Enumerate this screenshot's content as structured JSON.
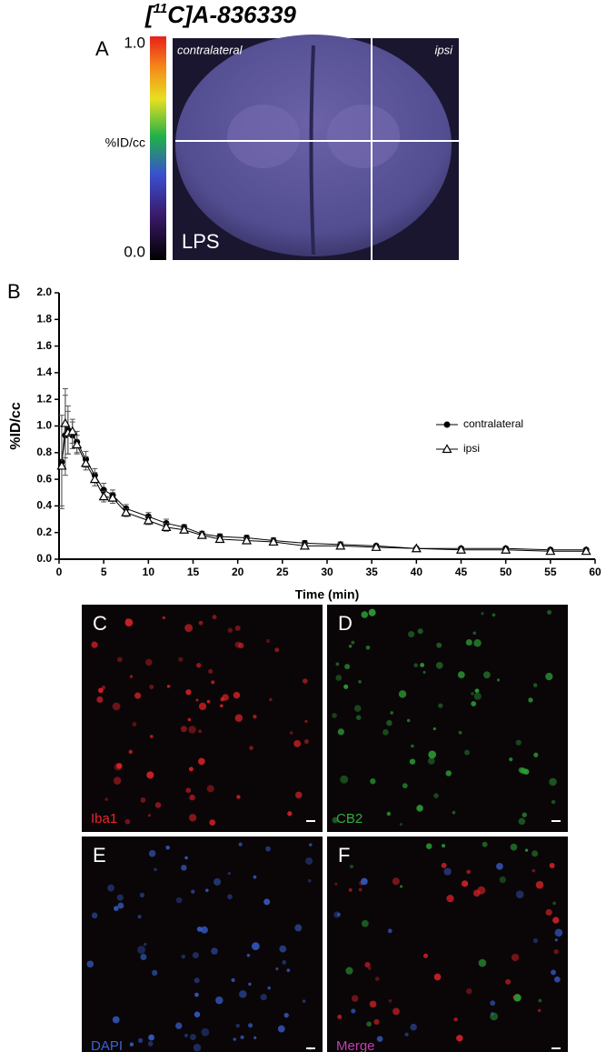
{
  "figure": {
    "title_prefix": "[",
    "title_sup": "11",
    "title_suffix": "C]A-836339",
    "panel_a": {
      "label": "A",
      "colorbar_max": "1.0",
      "colorbar_min": "0.0",
      "colorbar_title": "%ID/cc",
      "left_label": "contralateral",
      "right_label": "ipsi",
      "condition": "LPS"
    },
    "panel_b_label": "B",
    "micrographs": [
      {
        "label": "C",
        "stain": "Iba1",
        "color": "#e8242a"
      },
      {
        "label": "D",
        "stain": "CB2",
        "color": "#2fae3a"
      },
      {
        "label": "E",
        "stain": "DAPI",
        "color": "#3a63d8"
      },
      {
        "label": "F",
        "stain": "Merge",
        "color": "#c43fb3"
      }
    ]
  },
  "chart_data": {
    "type": "line",
    "xlabel": "Time (min)",
    "ylabel": "%ID/cc",
    "x": [
      0.3,
      0.7,
      1,
      1.5,
      2,
      3,
      4,
      5,
      6,
      7.5,
      10,
      12,
      14,
      16,
      18,
      21,
      24,
      27.5,
      31.5,
      35.5,
      40,
      45,
      50,
      55,
      59
    ],
    "series": [
      {
        "name": "contralateral",
        "color": "#000000",
        "marker": "circle",
        "values": [
          0.73,
          0.93,
          0.97,
          0.93,
          0.88,
          0.75,
          0.63,
          0.52,
          0.48,
          0.38,
          0.32,
          0.27,
          0.24,
          0.19,
          0.17,
          0.16,
          0.14,
          0.12,
          0.11,
          0.1,
          0.08,
          0.08,
          0.08,
          0.07,
          0.07
        ],
        "errors": [
          0.35,
          0.3,
          0.18,
          0.1,
          0.08,
          0.06,
          0.05,
          0.05,
          0.04,
          0.03,
          0.03,
          0.03,
          0.02,
          0.02,
          0.02,
          0.02,
          0.02,
          0.02,
          0.02,
          0.01,
          0.01,
          0.01,
          0.01,
          0.01,
          0.01
        ]
      },
      {
        "name": "ipsi",
        "color": "#000000",
        "marker": "triangle",
        "values": [
          0.7,
          1.02,
          0.95,
          0.96,
          0.86,
          0.72,
          0.6,
          0.47,
          0.46,
          0.35,
          0.29,
          0.24,
          0.22,
          0.18,
          0.15,
          0.14,
          0.13,
          0.1,
          0.1,
          0.09,
          0.08,
          0.07,
          0.07,
          0.06,
          0.06
        ],
        "errors": [
          0.3,
          0.26,
          0.16,
          0.09,
          0.07,
          0.05,
          0.05,
          0.04,
          0.04,
          0.03,
          0.03,
          0.03,
          0.02,
          0.02,
          0.02,
          0.02,
          0.02,
          0.02,
          0.02,
          0.01,
          0.01,
          0.01,
          0.01,
          0.01,
          0.01
        ]
      }
    ],
    "xlim": [
      0,
      60
    ],
    "xticks": [
      0,
      5,
      10,
      15,
      20,
      25,
      30,
      35,
      40,
      45,
      50,
      55,
      60
    ],
    "ylim": [
      0,
      2.0
    ],
    "yticks": [
      {
        "value": 0,
        "label": "0.0"
      },
      0.2,
      0.4,
      0.6,
      0.8,
      {
        "value": 1,
        "label": "1.0"
      },
      1.2,
      1.4,
      1.6,
      1.8,
      {
        "value": 2,
        "label": "2.0"
      }
    ],
    "legend": "right"
  }
}
